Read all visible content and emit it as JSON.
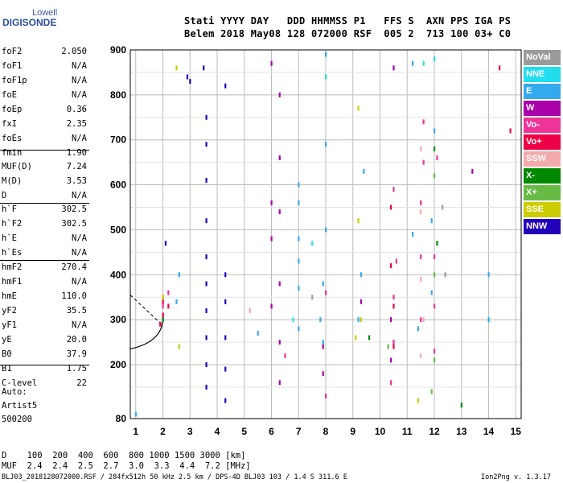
{
  "logo": {
    "line1": "Lowell",
    "line2": "DIGISONDE"
  },
  "header": {
    "line1": "Stati YYYY DAY   DDD HHMMSS P1   FFS S  AXN PPS IGA PS",
    "line2": "Belem 2018 May08 128 072000 RSF  005 2  713 100 03+ C0"
  },
  "params": [
    {
      "name": "foF2",
      "value": "2.050"
    },
    {
      "name": "foF1",
      "value": "N/A"
    },
    {
      "name": "foF1p",
      "value": "N/A"
    },
    {
      "name": "foE",
      "value": "N/A"
    },
    {
      "name": "foEp",
      "value": "0.36"
    },
    {
      "name": "fxI",
      "value": "2.35"
    },
    {
      "name": "foEs",
      "value": "N/A"
    },
    {
      "name": "fmin",
      "value": "1.90"
    },
    {
      "name": "MUF(D)",
      "value": "7.24"
    },
    {
      "name": "M(D)",
      "value": "3.53"
    },
    {
      "name": "D",
      "value": "N/A"
    },
    {
      "name": "h`F",
      "value": "302.5"
    },
    {
      "name": "h`F2",
      "value": "302.5"
    },
    {
      "name": "h`E",
      "value": "N/A"
    },
    {
      "name": "h`Es",
      "value": "N/A"
    },
    {
      "name": "hmF2",
      "value": "270.4"
    },
    {
      "name": "hmF1",
      "value": "N/A"
    },
    {
      "name": "hmE",
      "value": "110.0"
    },
    {
      "name": "yF2",
      "value": "35.5"
    },
    {
      "name": "yF1",
      "value": "N/A"
    },
    {
      "name": "yE",
      "value": "20.0"
    },
    {
      "name": "B0",
      "value": "37.9"
    },
    {
      "name": "B1",
      "value": "1.75"
    },
    {
      "name": "C-level",
      "value": "22"
    }
  ],
  "auto": {
    "line1": "Auto:",
    "line2": "Artist5",
    "line3": "500200"
  },
  "legend": [
    {
      "label": "NoVal",
      "color": "#9a9a9a"
    },
    {
      "label": "NNE",
      "color": "#22ddee"
    },
    {
      "label": "E",
      "color": "#33aaee"
    },
    {
      "label": "W",
      "color": "#aa00aa"
    },
    {
      "label": "Vo-",
      "color": "#ee3399"
    },
    {
      "label": "Vo+",
      "color": "#ee0044"
    },
    {
      "label": "SSW",
      "color": "#f3aaaa"
    },
    {
      "label": "X-",
      "color": "#008800"
    },
    {
      "label": "X+",
      "color": "#66bb44"
    },
    {
      "label": "SSE",
      "color": "#cccc00"
    },
    {
      "label": "NNW",
      "color": "#2200bb"
    }
  ],
  "muf_table": {
    "line1": "D    100  200  400  600  800 1000 1500 3000 [km]",
    "line2": "MUF  2.4  2.4  2.5  2.7  3.0  3.3  4.4  7.2 [MHz]"
  },
  "footer": {
    "left": "BLJ03_2018128072000.RSF / 284fx512h 50 kHz 2.5 km / DPS-4D BLJ03 103 / 1.4 S 311.6 E",
    "right": "Ion2Png v. 1.3.17"
  },
  "chart_data": {
    "type": "scatter",
    "xlim": [
      0.8,
      15.2
    ],
    "ylim": [
      80,
      900
    ],
    "x_ticks": [
      1,
      2,
      3,
      4,
      5,
      6,
      7,
      8,
      9,
      10,
      11,
      12,
      13,
      14,
      15
    ],
    "y_ticks": [
      80,
      200,
      300,
      400,
      500,
      600,
      700,
      800,
      900
    ],
    "grid": true,
    "legend_position": "right",
    "series": [
      {
        "name": "NNW",
        "color": "#2200bb",
        "points": [
          [
            3.5,
            860
          ],
          [
            3.6,
            750
          ],
          [
            3.6,
            690
          ],
          [
            3.6,
            610
          ],
          [
            3.6,
            520
          ],
          [
            3.6,
            440
          ],
          [
            3.6,
            380
          ],
          [
            3.6,
            320
          ],
          [
            3.6,
            260
          ],
          [
            3.6,
            200
          ],
          [
            3.6,
            150
          ],
          [
            4.3,
            820
          ],
          [
            4.3,
            400
          ],
          [
            4.3,
            340
          ],
          [
            4.3,
            260
          ],
          [
            4.3,
            190
          ],
          [
            4.3,
            120
          ],
          [
            3.0,
            830
          ],
          [
            2.9,
            840
          ],
          [
            2.1,
            470
          ]
        ]
      },
      {
        "name": "W",
        "color": "#aa00aa",
        "points": [
          [
            6.0,
            870
          ],
          [
            6.0,
            560
          ],
          [
            6.0,
            480
          ],
          [
            6.0,
            330
          ],
          [
            6.3,
            800
          ],
          [
            6.3,
            660
          ],
          [
            6.3,
            540
          ],
          [
            6.3,
            380
          ],
          [
            6.3,
            250
          ],
          [
            6.3,
            160
          ],
          [
            7.9,
            240
          ],
          [
            7.9,
            180
          ],
          [
            9.3,
            340
          ],
          [
            10.5,
            860
          ],
          [
            10.4,
            300
          ],
          [
            10.4,
            210
          ],
          [
            13.4,
            630
          ],
          [
            2.0,
            350
          ],
          [
            2.0,
            300
          ]
        ]
      },
      {
        "name": "E",
        "color": "#33aaee",
        "points": [
          [
            7.0,
            600
          ],
          [
            7.0,
            560
          ],
          [
            7.0,
            480
          ],
          [
            7.0,
            430
          ],
          [
            7.0,
            370
          ],
          [
            7.0,
            280
          ],
          [
            8.0,
            890
          ],
          [
            8.0,
            690
          ],
          [
            8.0,
            500
          ],
          [
            7.9,
            380
          ],
          [
            7.8,
            300
          ],
          [
            7.9,
            250
          ],
          [
            9.4,
            630
          ],
          [
            9.3,
            400
          ],
          [
            9.2,
            300
          ],
          [
            11.2,
            870
          ],
          [
            11.2,
            490
          ],
          [
            11.4,
            280
          ],
          [
            12.0,
            720
          ],
          [
            11.9,
            520
          ],
          [
            11.9,
            360
          ],
          [
            14.0,
            400
          ],
          [
            14.0,
            300
          ],
          [
            2.6,
            400
          ],
          [
            2.5,
            340
          ],
          [
            5.5,
            270
          ],
          [
            1.0,
            90
          ]
        ]
      },
      {
        "name": "NNE",
        "color": "#22ddee",
        "points": [
          [
            8.0,
            840
          ],
          [
            7.5,
            470
          ],
          [
            6.8,
            300
          ],
          [
            11.6,
            870
          ],
          [
            12.0,
            880
          ]
        ]
      },
      {
        "name": "Vo-",
        "color": "#ee3399",
        "points": [
          [
            10.5,
            590
          ],
          [
            10.6,
            430
          ],
          [
            10.5,
            350
          ],
          [
            10.5,
            250
          ],
          [
            10.4,
            160
          ],
          [
            11.6,
            740
          ],
          [
            11.6,
            650
          ],
          [
            11.5,
            560
          ],
          [
            11.5,
            440
          ],
          [
            11.5,
            300
          ],
          [
            12.1,
            660
          ],
          [
            12.0,
            440
          ],
          [
            12.0,
            330
          ],
          [
            12.0,
            230
          ],
          [
            8.0,
            360
          ],
          [
            8.0,
            130
          ],
          [
            6.5,
            220
          ],
          [
            2.0,
            330
          ],
          [
            2.0,
            310
          ],
          [
            2.2,
            360
          ]
        ]
      },
      {
        "name": "Vo+",
        "color": "#ee0044",
        "points": [
          [
            10.4,
            550
          ],
          [
            10.4,
            420
          ],
          [
            10.5,
            330
          ],
          [
            10.5,
            240
          ],
          [
            14.4,
            860
          ],
          [
            14.8,
            720
          ],
          [
            2.0,
            340
          ],
          [
            2.0,
            310
          ],
          [
            1.9,
            290
          ],
          [
            2.2,
            330
          ]
        ]
      },
      {
        "name": "SSW",
        "color": "#f3aaaa",
        "points": [
          [
            11.5,
            680
          ],
          [
            11.5,
            540
          ],
          [
            11.5,
            390
          ],
          [
            11.6,
            300
          ],
          [
            11.5,
            220
          ],
          [
            5.2,
            320
          ]
        ]
      },
      {
        "name": "X-",
        "color": "#008800",
        "points": [
          [
            12.0,
            680
          ],
          [
            12.1,
            470
          ],
          [
            13.0,
            110
          ],
          [
            9.6,
            260
          ],
          [
            2.0,
            300
          ]
        ]
      },
      {
        "name": "X+",
        "color": "#66bb44",
        "points": [
          [
            12.0,
            620
          ],
          [
            12.0,
            400
          ],
          [
            12.0,
            210
          ],
          [
            11.9,
            140
          ],
          [
            10.3,
            240
          ]
        ]
      },
      {
        "name": "SSE",
        "color": "#cccc00",
        "points": [
          [
            9.2,
            770
          ],
          [
            9.2,
            520
          ],
          [
            9.3,
            300
          ],
          [
            9.1,
            260
          ],
          [
            2.5,
            860
          ],
          [
            2.6,
            240
          ],
          [
            2.0,
            350
          ],
          [
            11.4,
            120
          ]
        ]
      },
      {
        "name": "NoVal",
        "color": "#9a9a9a",
        "points": [
          [
            12.3,
            550
          ],
          [
            12.4,
            400
          ],
          [
            7.5,
            350
          ]
        ]
      }
    ]
  }
}
